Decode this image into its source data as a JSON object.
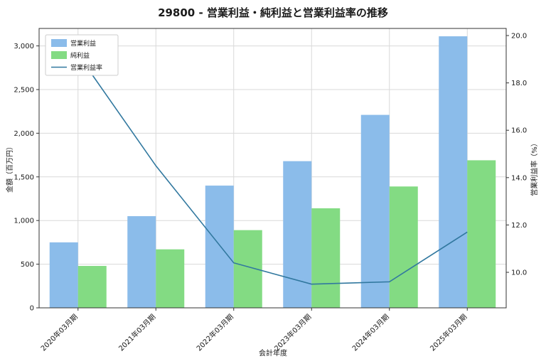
{
  "chart_data": {
    "type": "bar",
    "title": "29800 - 営業利益・純利益と営業利益率の推移",
    "categories": [
      "2020年03月期",
      "2021年03月期",
      "2022年03月期",
      "2023年03月期",
      "2024年03月期",
      "2025年03月期"
    ],
    "series": [
      {
        "name": "営業利益",
        "type": "bar",
        "axis": "left",
        "color": "#8BBCEA",
        "values": [
          750,
          1050,
          1400,
          1680,
          2210,
          3110
        ]
      },
      {
        "name": "純利益",
        "type": "bar",
        "axis": "left",
        "color": "#83DB83",
        "values": [
          480,
          670,
          890,
          1140,
          1390,
          1690
        ]
      },
      {
        "name": "営業利益率",
        "type": "line",
        "axis": "right",
        "color": "#31789F",
        "values": [
          19.2,
          14.5,
          10.4,
          9.5,
          9.6,
          11.7
        ]
      }
    ],
    "xlabel": "会計年度",
    "ylabel_left": "金額（百万円）",
    "ylabel_right": "営業利益率（%）",
    "ylim_left": [
      0,
      3200
    ],
    "ylim_right": [
      8.5,
      20.3
    ],
    "yticks_left": {
      "values": [
        0,
        500,
        1000,
        1500,
        2000,
        2500,
        3000
      ],
      "labels": [
        "0",
        "500",
        "1,000",
        "1,500",
        "2,000",
        "2,500",
        "3,000"
      ]
    },
    "yticks_right": {
      "values": [
        10,
        12,
        14,
        16,
        18,
        20
      ],
      "labels": [
        "10.0",
        "12.0",
        "14.0",
        "16.0",
        "18.0",
        "20.0"
      ]
    },
    "grid": true,
    "legend_position": "upper-left"
  },
  "colors": {
    "grid": "#d9d9d9",
    "spine": "#333333",
    "text": "#1a1a1a",
    "legend_border": "#cccccc",
    "background": "#ffffff"
  }
}
